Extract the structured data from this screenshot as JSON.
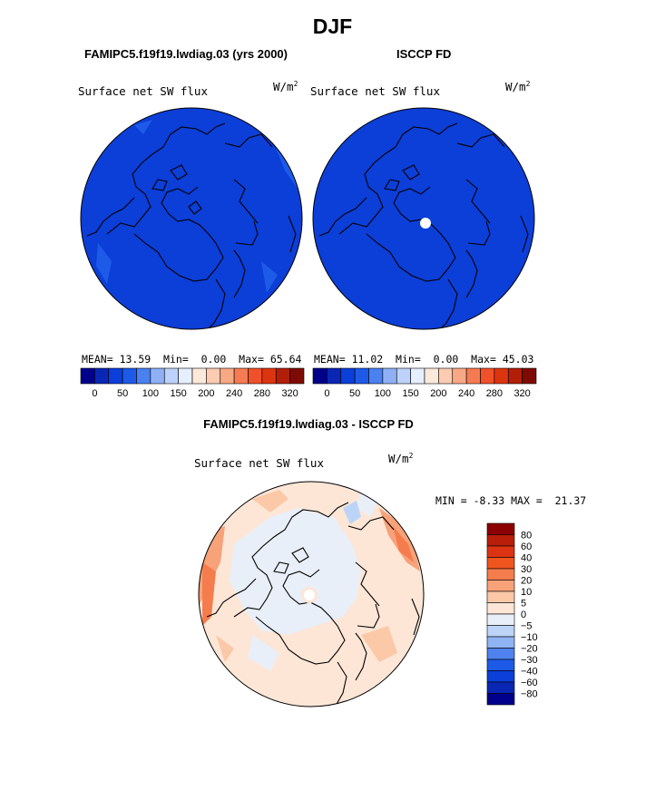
{
  "title": "DJF",
  "panels": [
    {
      "id": "model",
      "title": "FAMIPC5.f19f19.lwdiag.03 (yrs 2000)",
      "variable": "Surface net SW flux",
      "unit_base": "W/m",
      "unit_exp": "2",
      "stats": {
        "mean_label": "MEAN=",
        "mean": "13.59",
        "min_label": "Min=",
        "min": "0.00",
        "max_label": "Max=",
        "max": "65.64"
      },
      "colorbar_ticks": [
        "0",
        "50",
        "100",
        "150",
        "200",
        "240",
        "280",
        "320"
      ]
    },
    {
      "id": "obs",
      "title": "ISCCP FD",
      "variable": "Surface net SW flux",
      "unit_base": "W/m",
      "unit_exp": "2",
      "stats": {
        "mean_label": "MEAN=",
        "mean": "11.02",
        "min_label": "Min=",
        "min": "0.00",
        "max_label": "Max=",
        "max": "45.03"
      },
      "colorbar_ticks": [
        "0",
        "50",
        "100",
        "150",
        "200",
        "240",
        "280",
        "320"
      ]
    }
  ],
  "difference": {
    "title": "FAMIPC5.f19f19.lwdiag.03 - ISCCP FD",
    "variable": "Surface net SW flux",
    "unit_base": "W/m",
    "unit_exp": "2",
    "min_label": "MIN =",
    "min": "-8.33",
    "max_label": "MAX =",
    "max": "21.37",
    "colorbar_ticks": [
      "80",
      "60",
      "40",
      "30",
      "20",
      "10",
      "5",
      "0",
      "−5",
      "−10",
      "−20",
      "−30",
      "−40",
      "−60",
      "−80"
    ]
  },
  "colors": {
    "abs_scale": [
      "#00008b",
      "#0a26b4",
      "#0c3ed8",
      "#1e5ae8",
      "#4a80f0",
      "#8fb0f5",
      "#bcd2fa",
      "#e6efff",
      "#fde8dc",
      "#fbcbb2",
      "#f8a885",
      "#f57b52",
      "#f0502a",
      "#dd3410",
      "#b21e08",
      "#7e0a04"
    ],
    "diff_scale": [
      "#8b0000",
      "#b81e0a",
      "#dc3412",
      "#f0541f",
      "#f57c4c",
      "#f8a27a",
      "#fbc8a8",
      "#fde6d6",
      "#e9eff8",
      "#bcd4f7",
      "#8fb4f4",
      "#4f82ee",
      "#1e5ae8",
      "#0c3ed8",
      "#0a26b4",
      "#00008b"
    ],
    "map_fill_abs": "#0c3ed8",
    "map_fill_diff": "#fde6d6"
  },
  "chart_data": [
    {
      "type": "heatmap",
      "projection": "north polar stereographic",
      "title": "FAMIPC5.f19f19.lwdiag.03 (yrs 2000)",
      "field": "Surface net SW flux",
      "units": "W/m2",
      "mean": 13.59,
      "min": 0.0,
      "max": 65.64,
      "levels": [
        0,
        25,
        50,
        75,
        100,
        125,
        150,
        175,
        200,
        220,
        240,
        260,
        280,
        300,
        320
      ]
    },
    {
      "type": "heatmap",
      "projection": "north polar stereographic",
      "title": "ISCCP FD",
      "field": "Surface net SW flux",
      "units": "W/m2",
      "mean": 11.02,
      "min": 0.0,
      "max": 45.03,
      "levels": [
        0,
        25,
        50,
        75,
        100,
        125,
        150,
        175,
        200,
        220,
        240,
        260,
        280,
        300,
        320
      ]
    },
    {
      "type": "heatmap",
      "projection": "north polar stereographic",
      "title": "FAMIPC5.f19f19.lwdiag.03 - ISCCP FD",
      "field": "Surface net SW flux",
      "units": "W/m2",
      "min": -8.33,
      "max": 21.37,
      "levels": [
        -80,
        -60,
        -40,
        -30,
        -20,
        -10,
        -5,
        0,
        5,
        10,
        20,
        30,
        40,
        60,
        80
      ]
    }
  ]
}
